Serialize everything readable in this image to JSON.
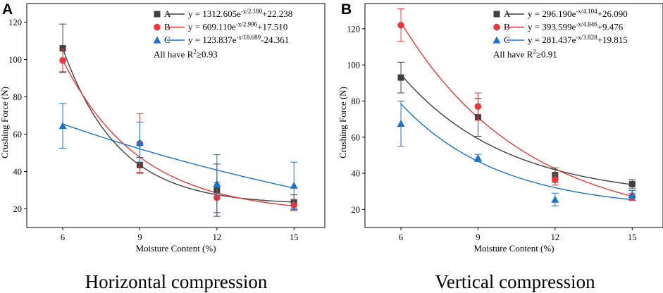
{
  "chart_data": [
    {
      "type": "scatter",
      "panel_label": "A",
      "caption": "Horizontal compression",
      "xlabel": "Moisture Content (%)",
      "ylabel": "Crushing Force (N)",
      "xlim": [
        4.6,
        16.2
      ],
      "ylim": [
        10,
        130
      ],
      "xticks": [
        6,
        9,
        12,
        15
      ],
      "yticks": [
        20,
        40,
        60,
        80,
        100,
        120
      ],
      "x": [
        6,
        9,
        12,
        15
      ],
      "series": [
        {
          "name": "A",
          "marker": "square",
          "color": "#404040",
          "values": [
            106,
            43.5,
            30,
            23.5
          ],
          "errors": [
            13,
            4,
            14,
            4
          ],
          "equation": "y = 1312.605e",
          "exponent": "-x/2.180",
          "equation_tail": "+22.238",
          "fit": {
            "a": 1312.605,
            "b": 2.18,
            "c": 22.238
          }
        },
        {
          "name": "B",
          "marker": "circle",
          "color": "#e8383d",
          "values": [
            99.5,
            55,
            26,
            22
          ],
          "errors": [
            6,
            16,
            8,
            3
          ],
          "equation": "y = 609.110e",
          "exponent": "-x/2.996",
          "equation_tail": "+17.510",
          "fit": {
            "a": 609.11,
            "b": 2.996,
            "c": 17.51
          }
        },
        {
          "name": "C",
          "marker": "triangle",
          "color": "#1a74c9",
          "values": [
            64.5,
            55.5,
            33.5,
            32.5
          ],
          "errors": [
            12,
            11,
            15.5,
            12.5
          ],
          "equation": "y = 123.837e",
          "exponent": "-x/18.689",
          "equation_tail": "-24.361",
          "fit": {
            "a": 123.837,
            "b": 18.689,
            "c": -24.361
          }
        }
      ],
      "note": "All have R",
      "note_sup": "2",
      "note_tail": "≥0.93"
    },
    {
      "type": "scatter",
      "panel_label": "B",
      "caption": "Vertical compression",
      "xlabel": "Moisture Content (%)",
      "ylabel": "Crushing Force (N)",
      "xlim": [
        4.6,
        16.2
      ],
      "ylim": [
        10,
        134
      ],
      "xticks": [
        6,
        9,
        12,
        15
      ],
      "yticks": [
        20,
        40,
        60,
        80,
        100,
        120
      ],
      "x": [
        6,
        9,
        12,
        15
      ],
      "series": [
        {
          "name": "A",
          "marker": "square",
          "color": "#404040",
          "values": [
            93,
            71,
            39,
            34
          ],
          "errors": [
            8.5,
            10.5,
            4,
            2.5
          ],
          "equation": "y = 296.190e",
          "exponent": "-x/4.104",
          "equation_tail": "+26.090",
          "fit": {
            "a": 296.19,
            "b": 4.104,
            "c": 26.09
          }
        },
        {
          "name": "B",
          "marker": "circle",
          "color": "#e8383d",
          "values": [
            122,
            77,
            36.5,
            27
          ],
          "errors": [
            9,
            7.5,
            3,
            2
          ],
          "equation": "y = 393.599e",
          "exponent": "-x/4.846",
          "equation_tail": "+9.476",
          "fit": {
            "a": 393.599,
            "b": 4.846,
            "c": 9.476
          }
        },
        {
          "name": "C",
          "marker": "triangle",
          "color": "#1a74c9",
          "values": [
            67.5,
            48.5,
            25.5,
            28
          ],
          "errors": [
            12.5,
            2,
            3.5,
            2.5
          ],
          "equation": "y = 281.437e",
          "exponent": "-x/3.828",
          "equation_tail": "+19.815",
          "fit": {
            "a": 281.437,
            "b": 3.828,
            "c": 19.815
          }
        }
      ],
      "note": "All have R",
      "note_sup": "2",
      "note_tail": "≥0.91"
    }
  ]
}
